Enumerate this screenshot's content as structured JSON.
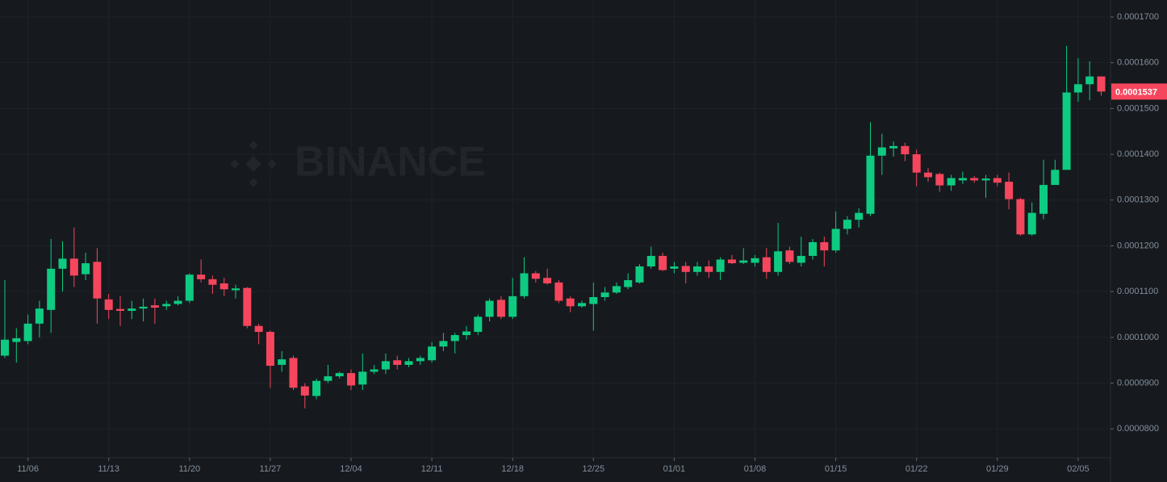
{
  "chart_data": {
    "type": "candlestick",
    "watermark": "BINANCE",
    "categories": [
      null,
      null,
      "11/06",
      null,
      null,
      null,
      null,
      null,
      null,
      "11/13",
      null,
      null,
      null,
      null,
      null,
      null,
      "11/20",
      null,
      null,
      null,
      null,
      null,
      null,
      "11/27",
      null,
      null,
      null,
      null,
      null,
      null,
      "12/04",
      null,
      null,
      null,
      null,
      null,
      null,
      "12/11",
      null,
      null,
      null,
      null,
      null,
      null,
      "12/18",
      null,
      null,
      null,
      null,
      null,
      null,
      "12/25",
      null,
      null,
      null,
      null,
      null,
      null,
      "01/01",
      null,
      null,
      null,
      null,
      null,
      null,
      "01/08",
      null,
      null,
      null,
      null,
      null,
      null,
      "01/15",
      null,
      null,
      null,
      null,
      null,
      null,
      "01/22",
      null,
      null,
      null,
      null,
      null,
      null,
      "01/29",
      null,
      null,
      null,
      null,
      null,
      null,
      "02/05",
      null,
      null
    ],
    "open": [
      9.6e-05,
      9.9e-05,
      9.92e-05,
      0.000103,
      0.000106,
      0.000115,
      0.0001172,
      0.0001138,
      0.0001165,
      0.0001083,
      0.0001062,
      0.0001058,
      0.0001063,
      0.000107,
      0.0001068,
      0.0001073,
      0.000108,
      0.0001137,
      0.0001127,
      0.0001118,
      0.0001103,
      0.0001108,
      0.0001025,
      0.0001012,
      9.4e-05,
      9.55e-05,
      8.93e-05,
      8.72e-05,
      9.05e-05,
      9.15e-05,
      9.22e-05,
      8.97e-05,
      9.25e-05,
      9.3e-05,
      9.5e-05,
      9.4e-05,
      9.48e-05,
      9.5e-05,
      9.8e-05,
      9.92e-05,
      0.0001005,
      0.0001012,
      0.0001045,
      0.0001082,
      0.0001045,
      0.000109,
      0.000114,
      0.000113,
      0.000112,
      0.0001085,
      0.0001068,
      0.0001073,
      0.0001088,
      0.0001098,
      0.000111,
      0.000112,
      0.0001155,
      0.0001178,
      0.000115,
      0.0001156,
      0.0001143,
      0.0001155,
      0.0001143,
      0.000117,
      0.0001163,
      0.0001163,
      0.0001175,
      0.0001143,
      0.000119,
      0.0001163,
      0.0001178,
      0.0001208,
      0.000119,
      0.0001237,
      0.0001257,
      0.000127,
      0.0001397,
      0.0001413,
      0.0001418,
      0.00014,
      0.000136,
      0.0001357,
      0.0001332,
      0.0001343,
      0.0001348,
      0.0001343,
      0.0001348,
      0.000134,
      0.0001302,
      0.0001225,
      0.000127,
      0.0001333,
      0.0001366,
      0.0001535,
      0.0001553,
      0.000157
    ],
    "close": [
      9.95e-05,
      9.98e-05,
      0.000103,
      0.0001063,
      0.000115,
      0.0001172,
      0.0001135,
      0.0001162,
      0.0001085,
      0.000106,
      0.0001058,
      0.0001063,
      0.0001067,
      0.0001065,
      0.0001073,
      0.000108,
      0.0001137,
      0.0001127,
      0.0001115,
      0.0001105,
      0.0001107,
      0.0001025,
      0.0001012,
      9.38e-05,
      9.52e-05,
      8.9e-05,
      8.73e-05,
      9.05e-05,
      9.15e-05,
      9.22e-05,
      8.95e-05,
      9.25e-05,
      9.3e-05,
      9.48e-05,
      9.4e-05,
      9.48e-05,
      9.55e-05,
      9.8e-05,
      9.92e-05,
      0.0001005,
      0.0001013,
      0.0001045,
      0.000108,
      0.0001045,
      0.000109,
      0.000114,
      0.0001128,
      0.0001118,
      0.000108,
      0.0001068,
      0.0001075,
      0.0001088,
      0.0001098,
      0.0001112,
      0.0001125,
      0.0001155,
      0.0001178,
      0.0001147,
      0.0001155,
      0.0001143,
      0.0001155,
      0.0001143,
      0.000117,
      0.0001162,
      0.0001168,
      0.0001173,
      0.0001143,
      0.0001188,
      0.0001165,
      0.0001178,
      0.0001208,
      0.000119,
      0.0001237,
      0.0001257,
      0.0001272,
      0.0001397,
      0.0001415,
      0.0001418,
      0.00014,
      0.000136,
      0.000135,
      0.0001332,
      0.0001348,
      0.0001348,
      0.0001343,
      0.0001347,
      0.0001338,
      0.0001302,
      0.0001225,
      0.0001272,
      0.0001333,
      0.0001366,
      0.0001535,
      0.0001553,
      0.000157,
      0.0001537
    ],
    "high": [
      0.0001125,
      0.000102,
      0.000105,
      0.000108,
      0.0001215,
      0.000121,
      0.000124,
      0.0001185,
      0.0001195,
      0.0001095,
      0.000109,
      0.000108,
      0.0001085,
      0.0001085,
      0.000108,
      0.000109,
      0.000114,
      0.000117,
      0.0001135,
      0.000113,
      0.0001115,
      0.000111,
      0.000103,
      0.0001015,
      9.7e-05,
      9.6e-05,
      9e-05,
      9.1e-05,
      9.4e-05,
      9.25e-05,
      9.3e-05,
      9.65e-05,
      9.4e-05,
      9.65e-05,
      9.6e-05,
      9.55e-05,
      9.6e-05,
      9.9e-05,
      0.000101,
      0.000101,
      0.0001025,
      0.000105,
      0.0001085,
      0.000109,
      0.000113,
      0.0001175,
      0.0001145,
      0.000115,
      0.0001125,
      0.000109,
      0.000108,
      0.000112,
      0.000111,
      0.000112,
      0.000114,
      0.000116,
      0.0001198,
      0.0001185,
      0.0001165,
      0.0001165,
      0.0001165,
      0.0001168,
      0.0001175,
      0.000118,
      0.0001195,
      0.000118,
      0.0001195,
      0.000125,
      0.0001198,
      0.000122,
      0.0001215,
      0.000122,
      0.0001275,
      0.0001265,
      0.0001282,
      0.000147,
      0.0001445,
      0.0001428,
      0.0001425,
      0.000141,
      0.000137,
      0.000136,
      0.0001355,
      0.0001362,
      0.0001352,
      0.0001355,
      0.0001355,
      0.000136,
      0.0001305,
      0.0001295,
      0.0001388,
      0.0001388,
      0.0001637,
      0.000161,
      0.0001603,
      0.000157
    ],
    "low": [
      9.55e-05,
      9.45e-05,
      9.85e-05,
      0.0001,
      0.000101,
      0.00011,
      0.000111,
      0.0001125,
      0.000103,
      0.000104,
      0.0001025,
      0.000104,
      0.0001035,
      0.000103,
      0.000106,
      0.000107,
      0.0001075,
      0.000112,
      0.0001095,
      0.000109,
      0.0001085,
      0.000102,
      9.85e-05,
      8.9e-05,
      9.25e-05,
      8.85e-05,
      8.45e-05,
      8.65e-05,
      9e-05,
      9.1e-05,
      8.85e-05,
      8.85e-05,
      9.2e-05,
      9.2e-05,
      9.3e-05,
      9.35e-05,
      9.4e-05,
      9.45e-05,
      9.7e-05,
      9.65e-05,
      9.95e-05,
      0.0001005,
      0.0001035,
      0.000104,
      0.000104,
      0.0001085,
      0.000112,
      0.0001115,
      0.0001075,
      0.0001055,
      0.0001065,
      0.0001015,
      0.000108,
      0.0001095,
      0.0001105,
      0.0001118,
      0.000115,
      0.0001145,
      0.000114,
      0.0001118,
      0.0001135,
      0.000113,
      0.0001125,
      0.000116,
      0.000116,
      0.0001155,
      0.0001128,
      0.0001135,
      0.000116,
      0.0001155,
      0.000117,
      0.0001155,
      0.0001185,
      0.0001225,
      0.000124,
      0.0001265,
      0.0001355,
      0.0001395,
      0.0001385,
      0.000133,
      0.000134,
      0.0001318,
      0.000132,
      0.0001335,
      0.0001338,
      0.0001305,
      0.000133,
      0.000128,
      0.0001222,
      0.0001222,
      0.0001258,
      0.0001333,
      0.0001366,
      0.0001515,
      0.0001518,
      0.0001528
    ],
    "up_color": "#0ecb81",
    "down_color": "#f6465d",
    "last_price": 0.0001537,
    "ylim": [
      7.37e-05,
      0.0001737
    ],
    "yticks": [
      {
        "value": 8e-05,
        "label": "0.0000800"
      },
      {
        "value": 9e-05,
        "label": "0.0000900"
      },
      {
        "value": 0.0001,
        "label": "0.0001000"
      },
      {
        "value": 0.00011,
        "label": "0.0001100"
      },
      {
        "value": 0.00012,
        "label": "0.0001200"
      },
      {
        "value": 0.00013,
        "label": "0.0001300"
      },
      {
        "value": 0.00014,
        "label": "0.0001400"
      },
      {
        "value": 0.00015,
        "label": "0.0001500"
      },
      {
        "value": 0.00016,
        "label": "0.0001600"
      },
      {
        "value": 0.00017,
        "label": "0.0001700"
      }
    ],
    "grid": true
  }
}
